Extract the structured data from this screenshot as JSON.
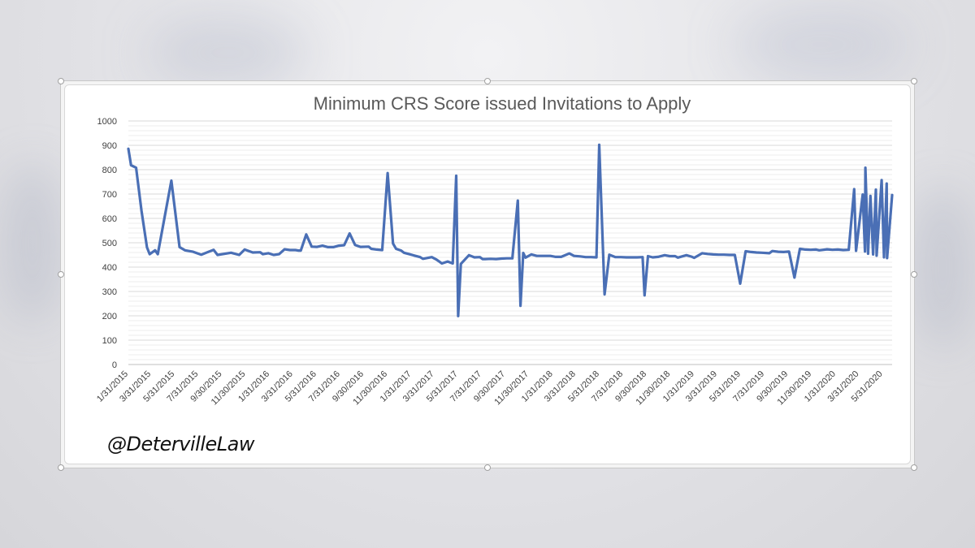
{
  "chart_data": {
    "type": "line",
    "title": "Minimum CRS Score issued Invitations to Apply",
    "xlabel": "",
    "ylabel": "",
    "ylim": [
      0,
      1000
    ],
    "y_ticks": [
      0,
      100,
      200,
      300,
      400,
      500,
      600,
      700,
      800,
      900,
      1000
    ],
    "x_tick_labels": [
      "1/31/2015",
      "3/31/2015",
      "5/31/2015",
      "7/31/2015",
      "9/30/2015",
      "11/30/2015",
      "1/31/2016",
      "3/31/2016",
      "5/31/2016",
      "7/31/2016",
      "9/30/2016",
      "11/30/2016",
      "1/31/2017",
      "3/31/2017",
      "5/31/2017",
      "7/31/2017",
      "9/30/2017",
      "11/30/2017",
      "1/31/2018",
      "3/31/2018",
      "5/31/2018",
      "7/31/2018",
      "9/30/2018",
      "11/30/2018",
      "1/31/2019",
      "3/31/2019",
      "5/31/2019",
      "7/31/2019",
      "9/30/2019",
      "11/30/2019",
      "1/31/2020",
      "3/31/2020",
      "5/31/2020"
    ],
    "grid": true,
    "legend": "none",
    "series": [
      {
        "color": "#4a6fb5",
        "points": [
          [
            "2015-01-31",
            886
          ],
          [
            "2015-02-07",
            818
          ],
          [
            "2015-02-20",
            808
          ],
          [
            "2015-03-06",
            630
          ],
          [
            "2015-03-20",
            481
          ],
          [
            "2015-03-27",
            453
          ],
          [
            "2015-04-10",
            469
          ],
          [
            "2015-04-17",
            453
          ],
          [
            "2015-05-22",
            755
          ],
          [
            "2015-06-12",
            482
          ],
          [
            "2015-06-26",
            469
          ],
          [
            "2015-07-17",
            463
          ],
          [
            "2015-08-07",
            451
          ],
          [
            "2015-09-08",
            471
          ],
          [
            "2015-09-18",
            450
          ],
          [
            "2015-10-23",
            459
          ],
          [
            "2015-11-13",
            450
          ],
          [
            "2015-11-27",
            472
          ],
          [
            "2015-12-18",
            460
          ],
          [
            "2016-01-06",
            461
          ],
          [
            "2016-01-13",
            453
          ],
          [
            "2016-01-27",
            457
          ],
          [
            "2016-02-10",
            450
          ],
          [
            "2016-02-24",
            453
          ],
          [
            "2016-03-09",
            473
          ],
          [
            "2016-03-23",
            470
          ],
          [
            "2016-04-06",
            470
          ],
          [
            "2016-04-13",
            468
          ],
          [
            "2016-04-20",
            468
          ],
          [
            "2016-05-04",
            534
          ],
          [
            "2016-05-18",
            484
          ],
          [
            "2016-06-01",
            483
          ],
          [
            "2016-06-15",
            488
          ],
          [
            "2016-06-29",
            482
          ],
          [
            "2016-07-13",
            482
          ],
          [
            "2016-07-27",
            488
          ],
          [
            "2016-08-10",
            490
          ],
          [
            "2016-08-24",
            538
          ],
          [
            "2016-09-07",
            491
          ],
          [
            "2016-09-21",
            483
          ],
          [
            "2016-10-12",
            484
          ],
          [
            "2016-10-19",
            475
          ],
          [
            "2016-11-02",
            472
          ],
          [
            "2016-11-16",
            470
          ],
          [
            "2016-11-30",
            786
          ],
          [
            "2016-12-14",
            497
          ],
          [
            "2016-12-22",
            475
          ],
          [
            "2017-01-04",
            468
          ],
          [
            "2017-01-11",
            459
          ],
          [
            "2017-01-25",
            453
          ],
          [
            "2017-02-08",
            447
          ],
          [
            "2017-02-22",
            441
          ],
          [
            "2017-03-01",
            434
          ],
          [
            "2017-03-24",
            441
          ],
          [
            "2017-04-05",
            431
          ],
          [
            "2017-04-12",
            423
          ],
          [
            "2017-04-19",
            415
          ],
          [
            "2017-05-04",
            423
          ],
          [
            "2017-05-17",
            415
          ],
          [
            "2017-05-26",
            775
          ],
          [
            "2017-05-31",
            199
          ],
          [
            "2017-06-07",
            413
          ],
          [
            "2017-06-28",
            449
          ],
          [
            "2017-07-12",
            440
          ],
          [
            "2017-07-26",
            441
          ],
          [
            "2017-08-02",
            433
          ],
          [
            "2017-08-09",
            433
          ],
          [
            "2017-08-23",
            434
          ],
          [
            "2017-09-06",
            433
          ],
          [
            "2017-09-20",
            435
          ],
          [
            "2017-10-04",
            436
          ],
          [
            "2017-10-18",
            436
          ],
          [
            "2017-11-01",
            673
          ],
          [
            "2017-11-08",
            241
          ],
          [
            "2017-11-15",
            458
          ],
          [
            "2017-11-21",
            439
          ],
          [
            "2017-12-06",
            452
          ],
          [
            "2017-12-20",
            446
          ],
          [
            "2018-01-10",
            446
          ],
          [
            "2018-01-24",
            446
          ],
          [
            "2018-02-07",
            442
          ],
          [
            "2018-02-21",
            442
          ],
          [
            "2018-03-14",
            456
          ],
          [
            "2018-03-26",
            446
          ],
          [
            "2018-04-11",
            444
          ],
          [
            "2018-04-25",
            441
          ],
          [
            "2018-05-09",
            441
          ],
          [
            "2018-05-23",
            440
          ],
          [
            "2018-05-30",
            902
          ],
          [
            "2018-06-13",
            288
          ],
          [
            "2018-06-25",
            451
          ],
          [
            "2018-07-11",
            441
          ],
          [
            "2018-07-25",
            441
          ],
          [
            "2018-08-08",
            440
          ],
          [
            "2018-08-22",
            440
          ],
          [
            "2018-09-05",
            440
          ],
          [
            "2018-09-19",
            441
          ],
          [
            "2018-09-24",
            284
          ],
          [
            "2018-10-03",
            445
          ],
          [
            "2018-10-15",
            440
          ],
          [
            "2018-10-29",
            442
          ],
          [
            "2018-11-15",
            449
          ],
          [
            "2018-11-28",
            445
          ],
          [
            "2018-12-12",
            445
          ],
          [
            "2018-12-19",
            439
          ],
          [
            "2019-01-10",
            449
          ],
          [
            "2019-01-23",
            443
          ],
          [
            "2019-01-30",
            438
          ],
          [
            "2019-02-20",
            457
          ],
          [
            "2019-03-06",
            454
          ],
          [
            "2019-03-20",
            452
          ],
          [
            "2019-04-03",
            451
          ],
          [
            "2019-04-17",
            451
          ],
          [
            "2019-05-01",
            450
          ],
          [
            "2019-05-15",
            450
          ],
          [
            "2019-05-29",
            332
          ],
          [
            "2019-06-12",
            465
          ],
          [
            "2019-06-26",
            462
          ],
          [
            "2019-07-10",
            460
          ],
          [
            "2019-07-24",
            459
          ],
          [
            "2019-08-12",
            457
          ],
          [
            "2019-08-20",
            466
          ],
          [
            "2019-09-04",
            463
          ],
          [
            "2019-09-18",
            462
          ],
          [
            "2019-10-02",
            464
          ],
          [
            "2019-10-16",
            357
          ],
          [
            "2019-10-30",
            475
          ],
          [
            "2019-11-13",
            472
          ],
          [
            "2019-11-27",
            471
          ],
          [
            "2019-12-11",
            472
          ],
          [
            "2019-12-19",
            469
          ],
          [
            "2020-01-08",
            473
          ],
          [
            "2020-01-22",
            471
          ],
          [
            "2020-02-05",
            472
          ],
          [
            "2020-02-19",
            470
          ],
          [
            "2020-03-04",
            471
          ],
          [
            "2020-03-18",
            720
          ],
          [
            "2020-03-23",
            467
          ],
          [
            "2020-04-09",
            698
          ],
          [
            "2020-04-15",
            464
          ],
          [
            "2020-04-16",
            808
          ],
          [
            "2020-04-23",
            455
          ],
          [
            "2020-04-29",
            692
          ],
          [
            "2020-05-06",
            452
          ],
          [
            "2020-05-13",
            718
          ],
          [
            "2020-05-15",
            447
          ],
          [
            "2020-05-28",
            757
          ],
          [
            "2020-06-03",
            440
          ],
          [
            "2020-06-10",
            743
          ],
          [
            "2020-06-11",
            437
          ],
          [
            "2020-06-24",
            696
          ]
        ]
      }
    ]
  },
  "watermark": "@DetervilleLaw"
}
